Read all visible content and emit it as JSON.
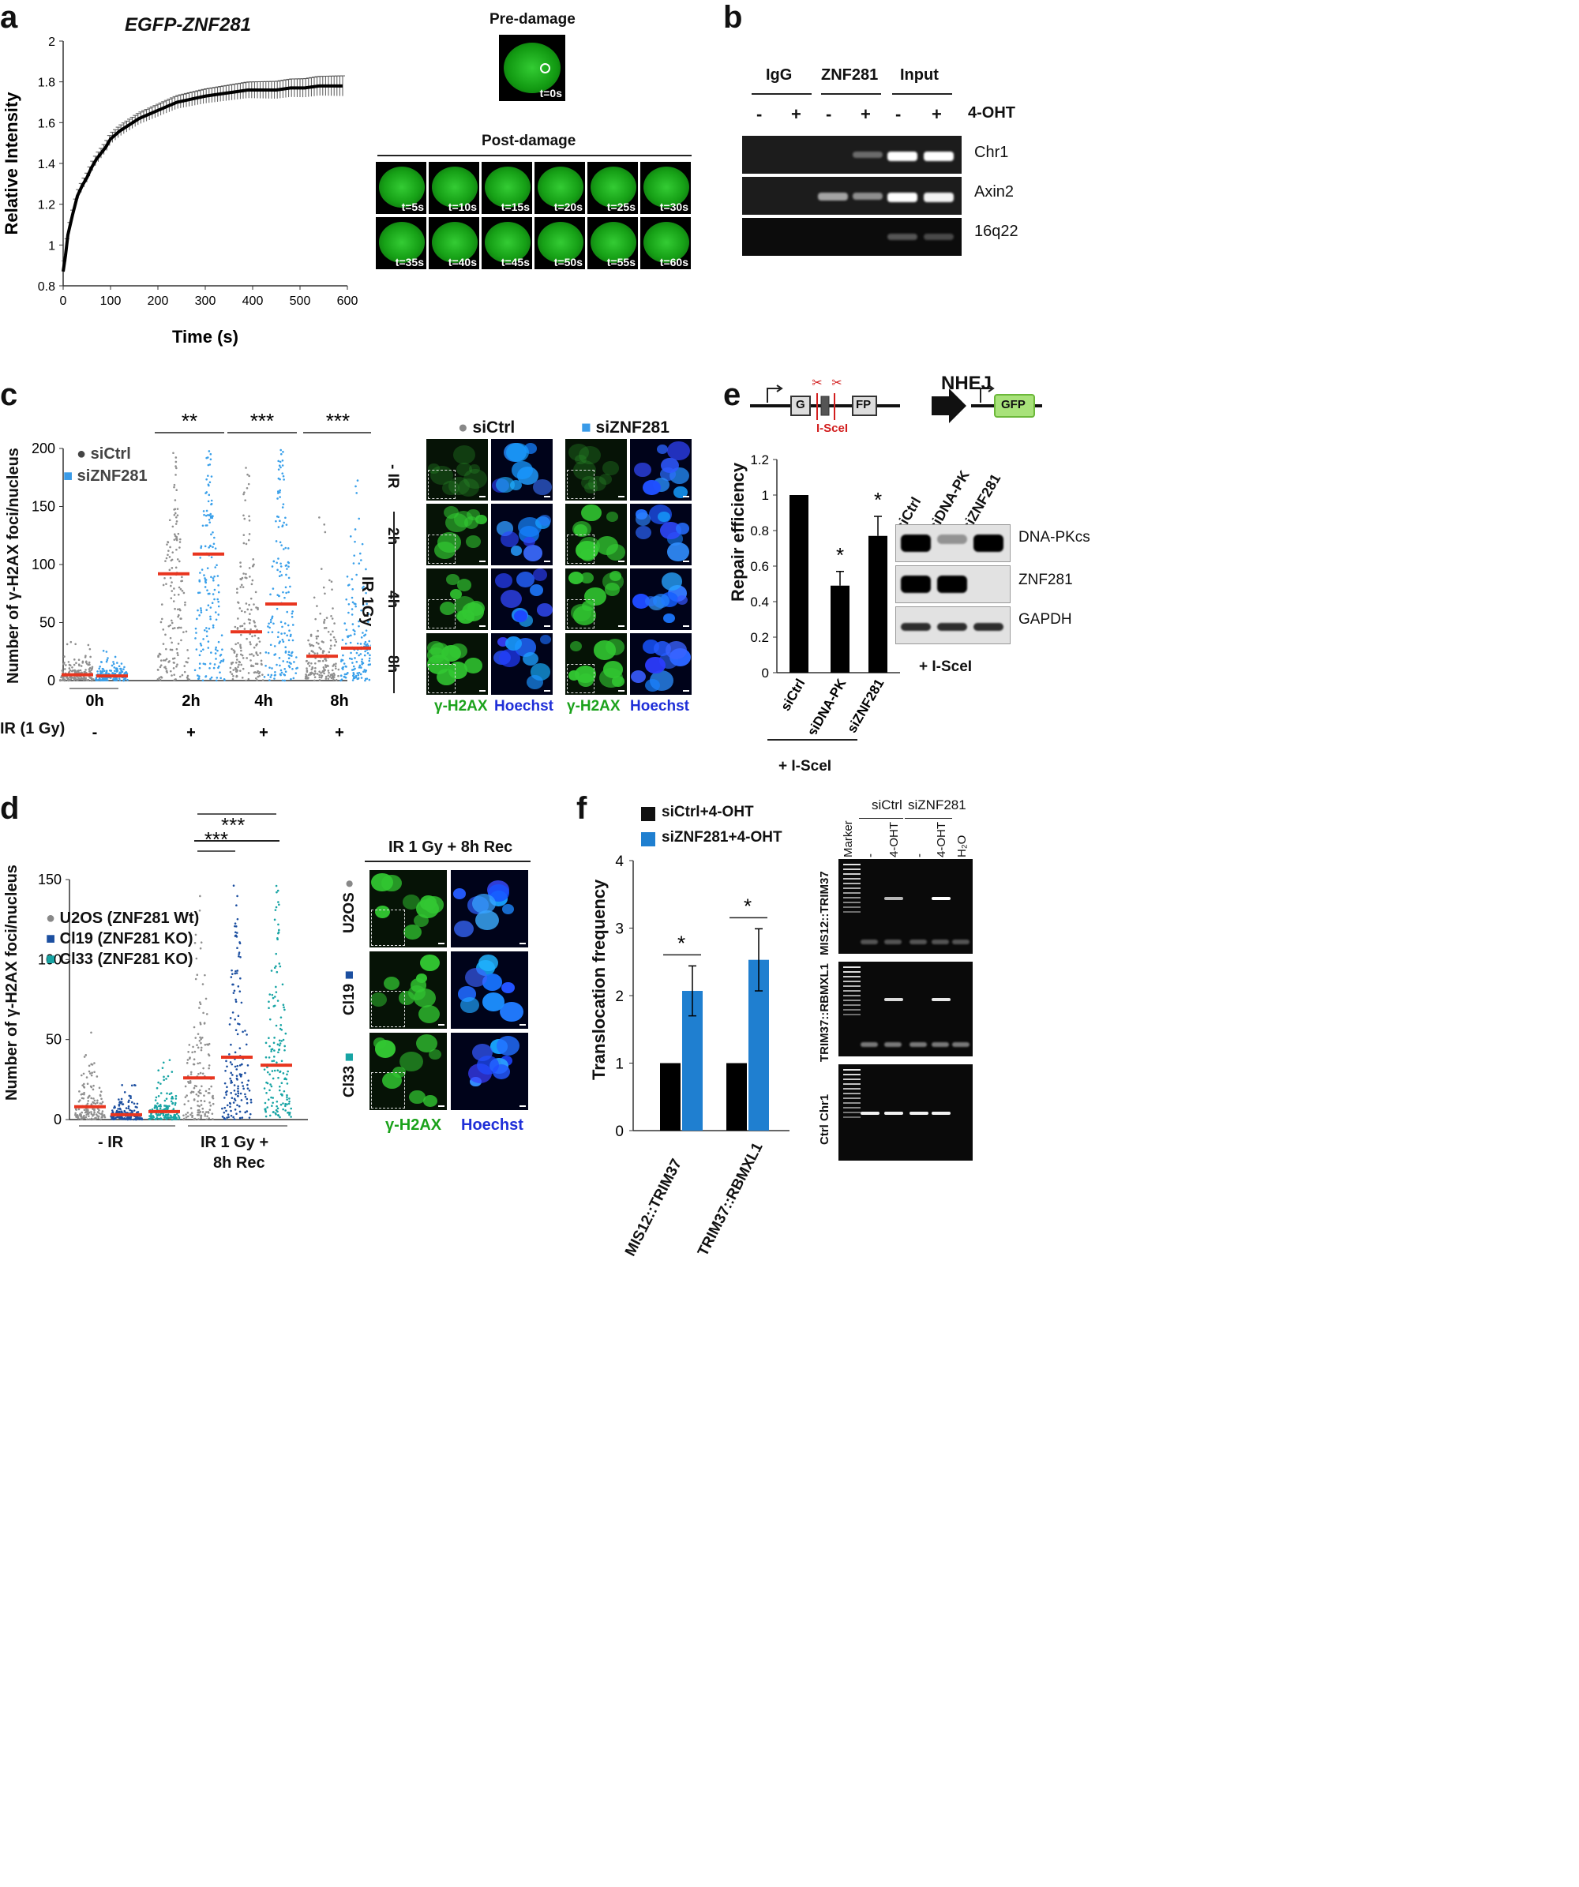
{
  "panels": {
    "a": "a",
    "b": "b",
    "c": "c",
    "d": "d",
    "e": "e",
    "f": "f"
  },
  "a": {
    "title": "EGFP-ZNF281",
    "pre_label": "Pre-damage",
    "pre_time": "t=0s",
    "post_label": "Post-damage",
    "post_times": [
      "t=5s",
      "t=10s",
      "t=15s",
      "t=20s",
      "t=25s",
      "t=30s",
      "t=35s",
      "t=40s",
      "t=45s",
      "t=50s",
      "t=55s",
      "t=60s"
    ]
  },
  "b": {
    "groups": [
      "IgG",
      "ZNF281",
      "Input"
    ],
    "treatment": "4-OHT",
    "signs": [
      "-",
      "+",
      "-",
      "+",
      "-",
      "+"
    ],
    "rows": [
      "Chr1",
      "Axin2",
      "16q22"
    ]
  },
  "c": {
    "legend": [
      "siCtrl",
      "siZNF281"
    ],
    "ylabel": "Number of γ-H2AX foci/nucleus",
    "timepoints": [
      "0h",
      "2h",
      "4h",
      "8h"
    ],
    "ir_label": "IR (1 Gy)",
    "ir_signs": [
      "-",
      "+",
      "+",
      "+"
    ],
    "sig": [
      "**",
      "***",
      "***"
    ],
    "yticks": [
      "0",
      "50",
      "100",
      "150",
      "200"
    ],
    "img_headers": [
      "siCtrl",
      "siZNF281"
    ],
    "img_rows": [
      "- IR",
      "2h",
      "4h",
      "8h"
    ],
    "ir_side": "IR 1Gy",
    "stain_g": "γ-H2AX",
    "stain_b": "Hoechst"
  },
  "d": {
    "legend": [
      "U2OS (ZNF281 Wt)",
      "Cl19 (ZNF281 KO)",
      "Cl33 (ZNF281 KO)"
    ],
    "ylabel": "Number of γ-H2AX foci/nucleus",
    "groups": [
      "- IR",
      "IR 1 Gy +",
      "8h Rec"
    ],
    "sig": [
      "***",
      "***"
    ],
    "yticks": [
      "0",
      "50",
      "100",
      "150"
    ],
    "img_header": "IR 1 Gy + 8h Rec",
    "img_rows": [
      "U2OS",
      "Cl19",
      "Cl33"
    ],
    "stain_g": "γ-H2AX",
    "stain_b": "Hoechst"
  },
  "e": {
    "nhej": "NHEJ",
    "construct": [
      "G",
      "FP",
      "I-SceI",
      "GFP"
    ],
    "ylabel": "Repair efficiency",
    "yticks": [
      "0",
      "0.2",
      "0.4",
      "0.6",
      "0.8",
      "1",
      "1.2"
    ],
    "isce": "+ I-SceI",
    "blot_cols": [
      "siCtrl",
      "siDNA-PK",
      "siZNF281"
    ],
    "blot_rows": [
      "DNA-PKcs",
      "ZNF281",
      "GAPDH"
    ],
    "blot_isce": "+ I-SceI"
  },
  "f": {
    "legend": [
      "siCtrl+4-OHT",
      "siZNF281+4-OHT"
    ],
    "ylabel": "Translocation frequency",
    "yticks": [
      "0",
      "1",
      "2",
      "3",
      "4"
    ],
    "gel_groups": [
      "siCtrl",
      "siZNF281"
    ],
    "gel_lanes": [
      "Marker",
      "-",
      "4-OHT",
      "-",
      "4-OHT",
      "H₂O"
    ],
    "gel_rows": [
      "MIS12::TRIM37",
      "TRIM37::RBMXL1",
      "Ctrl Chr1"
    ]
  },
  "chart_data": [
    {
      "type": "line",
      "title": "EGFP-ZNF281",
      "xlabel": "Time (s)",
      "ylabel": "Relative Intensity",
      "xlim": [
        0,
        600
      ],
      "ylim": [
        0.8,
        2
      ],
      "xticks": [
        0,
        100,
        200,
        300,
        400,
        500,
        600
      ],
      "yticks": [
        0.8,
        1,
        1.2,
        1.4,
        1.6,
        1.8,
        2
      ],
      "x": [
        0,
        5,
        10,
        20,
        30,
        40,
        50,
        60,
        70,
        80,
        90,
        100,
        120,
        140,
        160,
        180,
        200,
        220,
        240,
        260,
        280,
        300,
        330,
        360,
        390,
        420,
        450,
        480,
        510,
        540,
        570,
        590
      ],
      "y": [
        0.87,
        0.95,
        1.05,
        1.15,
        1.24,
        1.29,
        1.33,
        1.38,
        1.42,
        1.45,
        1.48,
        1.52,
        1.56,
        1.59,
        1.62,
        1.64,
        1.66,
        1.68,
        1.7,
        1.71,
        1.72,
        1.73,
        1.74,
        1.75,
        1.76,
        1.76,
        1.76,
        1.77,
        1.77,
        1.78,
        1.78,
        1.78
      ]
    },
    {
      "type": "bar",
      "ylabel": "Repair efficiency",
      "categories": [
        "siCtrl",
        "siDNA-PK",
        "siZNF281"
      ],
      "values": [
        1.0,
        0.49,
        0.77
      ],
      "errors": [
        0,
        0.08,
        0.11
      ],
      "significance": [
        "",
        "*",
        "*"
      ],
      "ylim": [
        0,
        1.2
      ]
    },
    {
      "type": "bar",
      "ylabel": "Translocation frequency",
      "categories": [
        "MIS12::TRIM37",
        "TRIM37::RBMXL1"
      ],
      "series": [
        {
          "name": "siCtrl+4-OHT",
          "values": [
            1.0,
            1.0
          ],
          "errors": [
            0,
            0
          ]
        },
        {
          "name": "siZNF281+4-OHT",
          "values": [
            2.07,
            2.53
          ],
          "errors": [
            0.37,
            0.46
          ]
        }
      ],
      "significance": [
        "*",
        "*"
      ],
      "ylim": [
        0,
        4
      ]
    },
    {
      "type": "scatter",
      "ylabel": "Number of γ-H2AX foci/nucleus",
      "categories": [
        "0h",
        "2h",
        "4h",
        "8h"
      ],
      "series": [
        {
          "name": "siCtrl",
          "medians": [
            5,
            92,
            42,
            21
          ]
        },
        {
          "name": "siZNF281",
          "medians": [
            4,
            109,
            66,
            28
          ]
        }
      ],
      "ylim": [
        0,
        200
      ]
    },
    {
      "type": "scatter",
      "ylabel": "Number of γ-H2AX foci/nucleus",
      "categories": [
        "- IR",
        "IR 1 Gy + 8h Rec"
      ],
      "series": [
        {
          "name": "U2OS (ZNF281 Wt)",
          "medians": [
            8,
            26
          ]
        },
        {
          "name": "Cl19 (ZNF281 KO)",
          "medians": [
            3,
            39
          ]
        },
        {
          "name": "Cl33 (ZNF281 KO)",
          "medians": [
            5,
            34
          ]
        }
      ],
      "ylim": [
        0,
        150
      ]
    }
  ]
}
